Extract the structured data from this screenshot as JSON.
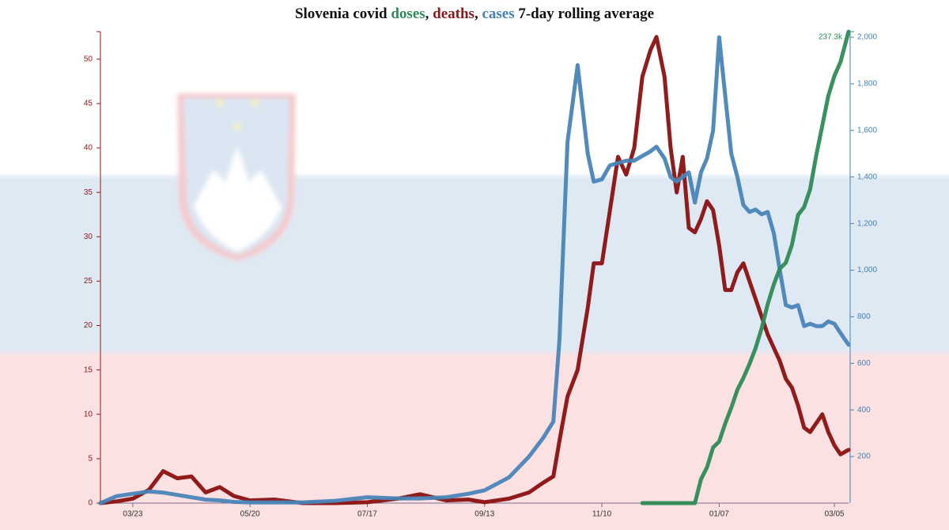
{
  "chart_data": {
    "type": "line",
    "title_parts": [
      {
        "text": "Slovenia covid ",
        "color": "#111111"
      },
      {
        "text": "doses",
        "color": "#2e8b57"
      },
      {
        "text": ", ",
        "color": "#111111"
      },
      {
        "text": "deaths",
        "color": "#8b1a1a"
      },
      {
        "text": ", ",
        "color": "#111111"
      },
      {
        "text": "cases",
        "color": "#4682b4"
      },
      {
        "text": " 7-day rolling average",
        "color": "#111111"
      }
    ],
    "x": [
      "03/07",
      "03/15",
      "03/23",
      "03/31",
      "04/07",
      "04/14",
      "04/21",
      "04/28",
      "05/05",
      "05/12",
      "05/20",
      "06/01",
      "06/15",
      "07/01",
      "07/17",
      "08/01",
      "08/12",
      "08/25",
      "09/05",
      "09/13",
      "09/25",
      "10/05",
      "10/12",
      "10/17",
      "10/20",
      "10/24",
      "10/29",
      "11/03",
      "11/06",
      "11/10",
      "11/14",
      "11/18",
      "11/22",
      "11/26",
      "11/30",
      "12/04",
      "12/07",
      "12/11",
      "12/14",
      "12/17",
      "12/20",
      "12/23",
      "12/26",
      "12/29",
      "01/01",
      "01/04",
      "01/07",
      "01/10",
      "01/13",
      "01/16",
      "01/19",
      "01/22",
      "01/25",
      "01/28",
      "01/31",
      "02/03",
      "02/06",
      "02/09",
      "02/12",
      "02/15",
      "02/18",
      "02/21",
      "02/24",
      "02/27",
      "03/02",
      "03/05",
      "03/08",
      "03/12"
    ],
    "xticks": [
      "03/23",
      "05/20",
      "07/17",
      "09/13",
      "11/10",
      "01/07",
      "03/05"
    ],
    "series": [
      {
        "name": "deaths",
        "color": "#8b1010",
        "axis": "y",
        "values": [
          0,
          0.2,
          0.5,
          1.5,
          3.6,
          2.8,
          3,
          1.2,
          1.8,
          0.8,
          0.3,
          0.4,
          0,
          0,
          0.1,
          0.5,
          1,
          0.3,
          0.4,
          0.1,
          0.5,
          1.2,
          2.3,
          3,
          7,
          12,
          15,
          22,
          27,
          27,
          33,
          39,
          37,
          40,
          48,
          51,
          52.5,
          48,
          40,
          35,
          39,
          31,
          30.5,
          32,
          34,
          33,
          29,
          24,
          24,
          26,
          27,
          25,
          23,
          21,
          19,
          17.5,
          16,
          14,
          13,
          11,
          8.5,
          8,
          9,
          10,
          8,
          6.5,
          5.5,
          6
        ]
      },
      {
        "name": "cases",
        "color": "#4a84b8",
        "axis": "y2",
        "values": [
          0,
          30,
          40,
          50,
          45,
          35,
          25,
          15,
          12,
          5,
          3,
          3,
          3,
          10,
          25,
          20,
          20,
          25,
          40,
          55,
          110,
          200,
          280,
          350,
          700,
          1550,
          1880,
          1500,
          1380,
          1390,
          1450,
          1460,
          1470,
          1470,
          1490,
          1510,
          1530,
          1480,
          1400,
          1380,
          1400,
          1420,
          1290,
          1420,
          1480,
          1600,
          2000,
          1750,
          1500,
          1400,
          1280,
          1250,
          1260,
          1240,
          1250,
          1160,
          1000,
          850,
          840,
          850,
          760,
          770,
          760,
          760,
          780,
          770,
          730,
          680
        ]
      },
      {
        "name": "doses",
        "color": "#2e8b57",
        "axis": "y3",
        "values": [
          null,
          null,
          null,
          null,
          null,
          null,
          null,
          null,
          null,
          null,
          null,
          null,
          null,
          null,
          null,
          null,
          null,
          null,
          null,
          null,
          null,
          null,
          null,
          null,
          null,
          null,
          null,
          null,
          null,
          null,
          null,
          null,
          null,
          null,
          0,
          0,
          0,
          0,
          0,
          0,
          0,
          0,
          0,
          12000,
          18000,
          28000,
          31000,
          40000,
          48000,
          57000,
          63000,
          70000,
          78000,
          88000,
          100000,
          110000,
          118000,
          121000,
          130000,
          145000,
          149000,
          158000,
          175000,
          190000,
          205000,
          215000,
          222000,
          237300
        ],
        "value_labels": [
          null,
          null,
          null,
          null,
          null,
          null,
          null,
          null,
          null,
          null,
          null,
          null,
          null,
          null,
          null,
          null,
          null,
          null,
          null,
          null,
          null,
          null,
          null,
          null,
          null,
          null,
          null,
          null,
          null,
          null,
          null,
          null,
          null,
          null,
          null,
          null,
          null,
          null,
          null,
          null,
          null,
          null,
          null,
          null,
          null,
          null,
          null,
          null,
          null,
          null,
          null,
          null,
          null,
          null,
          null,
          null,
          null,
          null,
          null,
          null,
          null,
          null,
          null,
          null,
          null,
          null,
          null,
          "237.3k"
        ]
      }
    ],
    "ylim": [
      0,
      53.1
    ],
    "yticks": [
      0,
      5,
      10,
      15,
      20,
      25,
      30,
      35,
      40,
      45,
      50
    ],
    "ycolor": "#8b1a1a",
    "y2lim": [
      0,
      2024
    ],
    "y2ticks": [
      200,
      400,
      600,
      800,
      {
        "value": 1000,
        "label": "1,000"
      },
      {
        "value": 1200,
        "label": "1,200"
      },
      {
        "value": 1400,
        "label": "1,400"
      },
      {
        "value": 1600,
        "label": "1,600"
      },
      {
        "value": 1800,
        "label": "1,800"
      },
      {
        "value": 2000,
        "label": "2,000"
      }
    ],
    "y2color": "#4682b4",
    "y3lim": [
      0,
      237300
    ]
  }
}
